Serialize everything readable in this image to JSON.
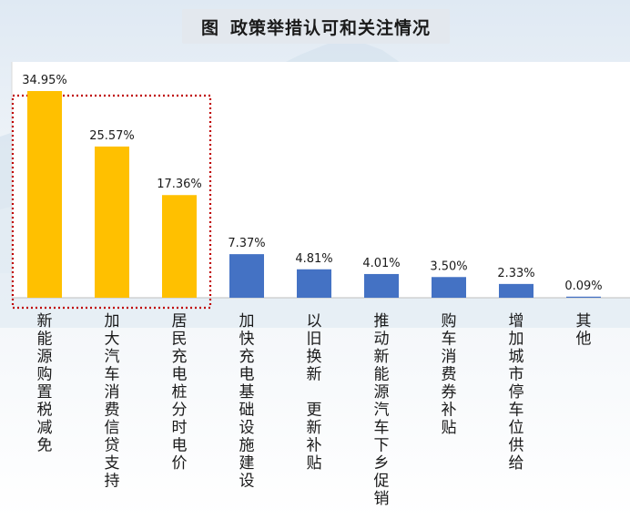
{
  "title": {
    "prefix": "图",
    "text": "政策举措认可和关注情况"
  },
  "chart_data": {
    "type": "bar",
    "title": "图 政策举措认可和关注情况",
    "categories": [
      "新能源购置税减免",
      "加大汽车消费信贷支持",
      "居民充电桩分时电价",
      "加快充电基础设施建设",
      "以旧换新　更新补贴",
      "推动新能源汽车下乡促销",
      "购车消费券补贴",
      "增加城市停车位供给",
      "其他"
    ],
    "values": [
      34.95,
      25.57,
      17.36,
      7.37,
      4.81,
      4.01,
      3.5,
      2.33,
      0.09
    ],
    "value_labels": [
      "34.95%",
      "25.57%",
      "17.36%",
      "7.37%",
      "4.81%",
      "4.01%",
      "3.50%",
      "2.33%",
      "0.09%"
    ],
    "highlighted_count": 3,
    "ylim": [
      0,
      36
    ],
    "grid": false,
    "legend": "none",
    "colors": {
      "highlight": "#FFC000",
      "normal": "#4472C4",
      "box": "#C00000",
      "plot_bg": "#FFFFFF"
    }
  }
}
